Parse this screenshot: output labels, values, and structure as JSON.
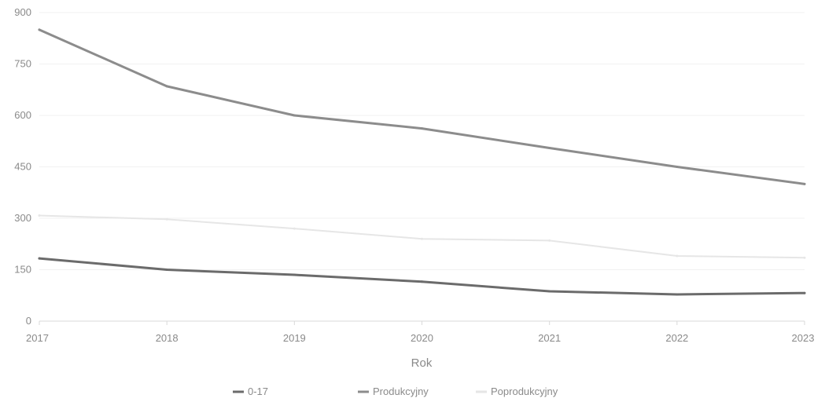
{
  "chart_data": {
    "type": "line",
    "x": [
      "2017",
      "2018",
      "2019",
      "2020",
      "2021",
      "2022",
      "2023"
    ],
    "xlabel": "Rok",
    "ylabel": "",
    "ylim": [
      0,
      900
    ],
    "yticks": [
      0,
      150,
      300,
      450,
      600,
      750,
      900
    ],
    "grid": true,
    "legend": "bottom",
    "series": [
      {
        "name": "0-17",
        "values": [
          183,
          150,
          135,
          115,
          87,
          78,
          82
        ],
        "color": "#6b6b6b"
      },
      {
        "name": "Produkcyjny",
        "values": [
          850,
          685,
          600,
          562,
          505,
          450,
          400
        ],
        "color": "#8c8c8c"
      },
      {
        "name": "Poprodukcyjny",
        "values": [
          308,
          297,
          270,
          240,
          235,
          190,
          185
        ],
        "color": "#e6e6e6"
      }
    ]
  }
}
